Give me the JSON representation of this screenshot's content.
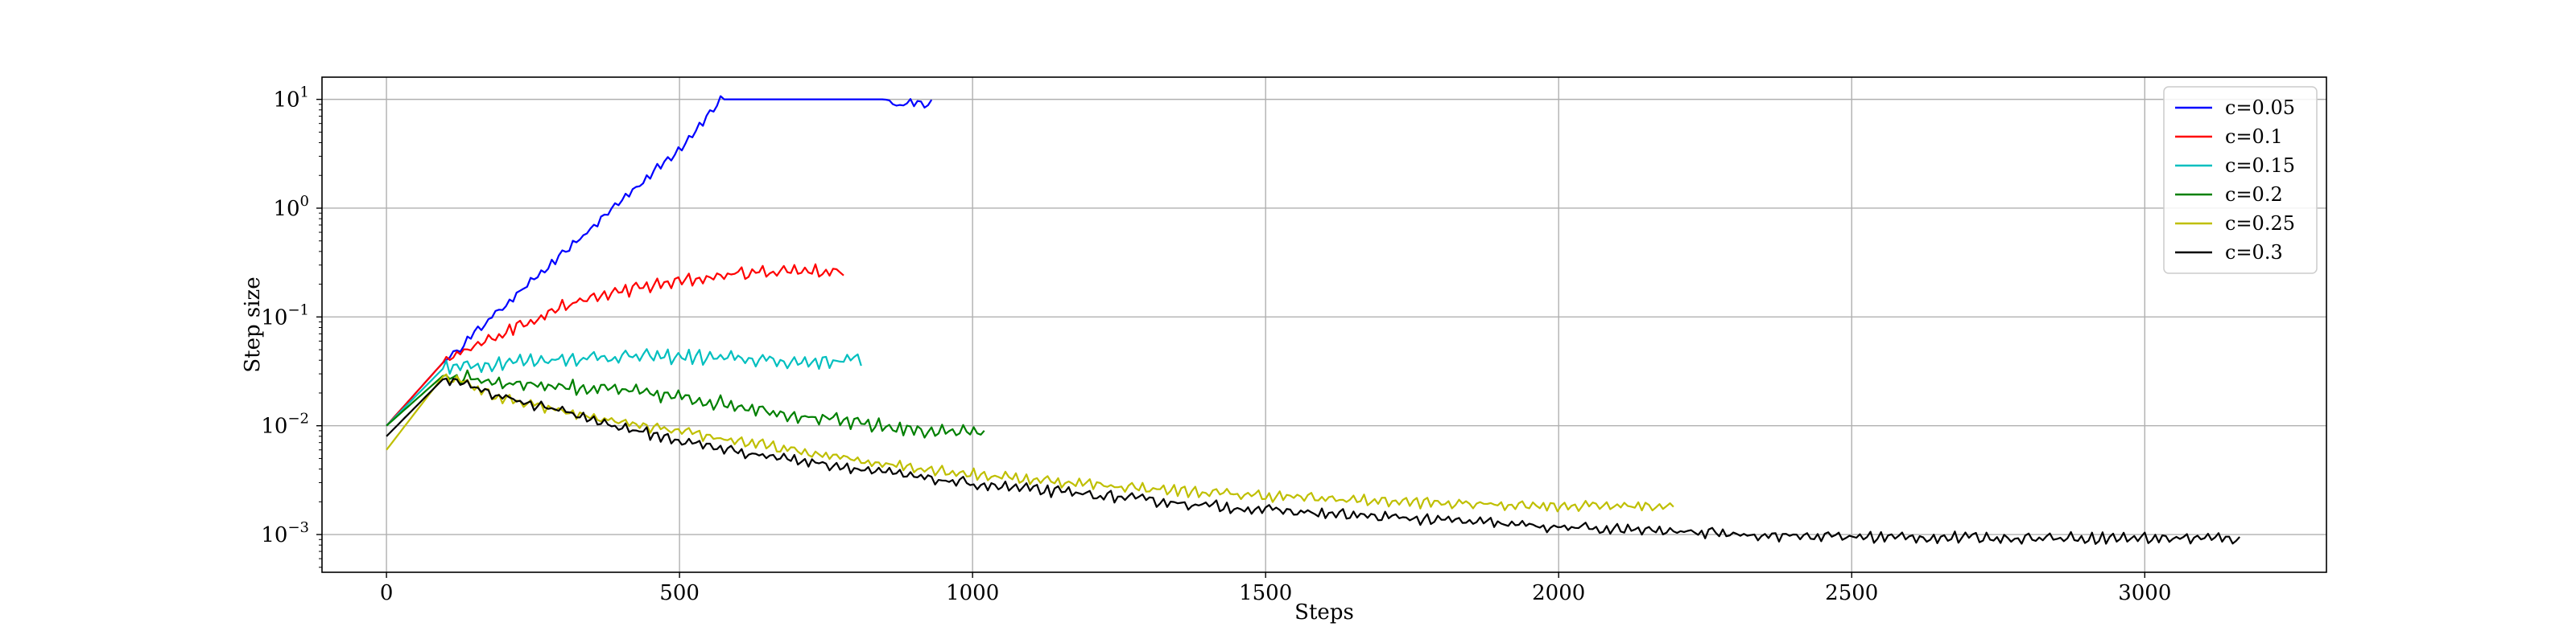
{
  "chart_data": {
    "type": "line",
    "title": "",
    "xlabel": "Steps",
    "ylabel": "Step size",
    "xlim": [
      -110,
      3310
    ],
    "ylim": [
      0.00045,
      16
    ],
    "yscale": "log",
    "grid": true,
    "legend_position": "top-right",
    "x_ticks": [
      {
        "value": 0,
        "label": "0"
      },
      {
        "value": 500,
        "label": "500"
      },
      {
        "value": 1000,
        "label": "1000"
      },
      {
        "value": 1500,
        "label": "1500"
      },
      {
        "value": 2000,
        "label": "2000"
      },
      {
        "value": 2500,
        "label": "2500"
      },
      {
        "value": 3000,
        "label": "3000"
      }
    ],
    "y_ticks": [
      {
        "value": 10,
        "base": "10",
        "exp": "1"
      },
      {
        "value": 1,
        "base": "10",
        "exp": "0"
      },
      {
        "value": 0.1,
        "base": "10",
        "exp": "−1"
      },
      {
        "value": 0.01,
        "base": "10",
        "exp": "−2"
      },
      {
        "value": 0.001,
        "base": "10",
        "exp": "−3"
      }
    ],
    "series": [
      {
        "name": "c=0.05",
        "color": "#0000ff",
        "noise": 0.08,
        "points": [
          [
            0,
            0.01
          ],
          [
            100,
            0.04
          ],
          [
            200,
            0.13
          ],
          [
            300,
            0.38
          ],
          [
            400,
            1.2
          ],
          [
            500,
            3.6
          ],
          [
            570,
            10
          ],
          [
            850,
            10
          ],
          [
            880,
            9.0
          ],
          [
            900,
            9.6
          ],
          [
            920,
            9.2
          ],
          [
            935,
            9.4
          ]
        ]
      },
      {
        "name": "c=0.1",
        "color": "#ff0000",
        "noise": 0.12,
        "points": [
          [
            0,
            0.01
          ],
          [
            100,
            0.04
          ],
          [
            200,
            0.075
          ],
          [
            300,
            0.13
          ],
          [
            400,
            0.18
          ],
          [
            500,
            0.22
          ],
          [
            600,
            0.26
          ],
          [
            700,
            0.28
          ],
          [
            780,
            0.27
          ]
        ]
      },
      {
        "name": "c=0.15",
        "color": "#00bfbf",
        "noise": 0.13,
        "points": [
          [
            0,
            0.01
          ],
          [
            100,
            0.035
          ],
          [
            200,
            0.04
          ],
          [
            300,
            0.043
          ],
          [
            400,
            0.045
          ],
          [
            500,
            0.045
          ],
          [
            600,
            0.043
          ],
          [
            700,
            0.04
          ],
          [
            815,
            0.042
          ]
        ]
      },
      {
        "name": "c=0.2",
        "color": "#008000",
        "noise": 0.13,
        "points": [
          [
            0,
            0.01
          ],
          [
            100,
            0.03
          ],
          [
            200,
            0.026
          ],
          [
            300,
            0.024
          ],
          [
            400,
            0.022
          ],
          [
            500,
            0.019
          ],
          [
            600,
            0.016
          ],
          [
            700,
            0.013
          ],
          [
            800,
            0.011
          ],
          [
            900,
            0.0095
          ],
          [
            1020,
            0.009
          ]
        ]
      },
      {
        "name": "c=0.25",
        "color": "#bfbf00",
        "noise": 0.1,
        "points": [
          [
            0,
            0.006
          ],
          [
            100,
            0.03
          ],
          [
            200,
            0.018
          ],
          [
            300,
            0.014
          ],
          [
            400,
            0.011
          ],
          [
            500,
            0.009
          ],
          [
            600,
            0.0075
          ],
          [
            700,
            0.006
          ],
          [
            800,
            0.005
          ],
          [
            900,
            0.0043
          ],
          [
            1000,
            0.0037
          ],
          [
            1200,
            0.003
          ],
          [
            1400,
            0.0025
          ],
          [
            1600,
            0.0022
          ],
          [
            1800,
            0.002
          ],
          [
            2000,
            0.0019
          ],
          [
            2200,
            0.0019
          ]
        ]
      },
      {
        "name": "c=0.3",
        "color": "#000000",
        "noise": 0.1,
        "points": [
          [
            0,
            0.008
          ],
          [
            100,
            0.028
          ],
          [
            200,
            0.019
          ],
          [
            300,
            0.014
          ],
          [
            400,
            0.01
          ],
          [
            500,
            0.0075
          ],
          [
            600,
            0.006
          ],
          [
            700,
            0.005
          ],
          [
            800,
            0.0042
          ],
          [
            900,
            0.0035
          ],
          [
            1000,
            0.003
          ],
          [
            1200,
            0.0024
          ],
          [
            1400,
            0.0019
          ],
          [
            1600,
            0.0016
          ],
          [
            1800,
            0.0014
          ],
          [
            2000,
            0.0012
          ],
          [
            2200,
            0.0011
          ],
          [
            2400,
            0.001
          ],
          [
            2600,
            0.00097
          ],
          [
            2800,
            0.00096
          ],
          [
            3000,
            0.00096
          ],
          [
            3165,
            0.00095
          ]
        ]
      }
    ]
  }
}
